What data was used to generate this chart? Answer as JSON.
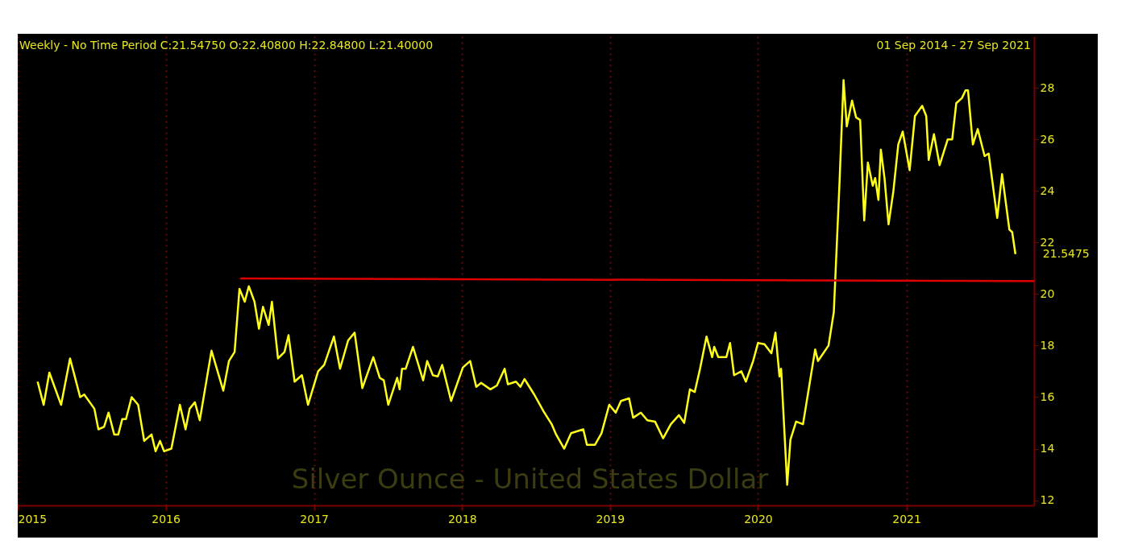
{
  "chart_data": {
    "type": "line",
    "title": "Weekly - No Time Period  C:21.54750 O:22.40800 H:22.84800 L:21.40000",
    "annotations": [
      "01 Sep 2014 - 27 Sep 2021",
      "Silver Ounce - United States Dollar",
      {
        "text": "21.5475",
        "x": "2021-09-27",
        "y": 21.5475
      }
    ],
    "x": [
      "2015-02-19",
      "2015-03-06",
      "2015-03-20",
      "2015-04-18",
      "2015-05-10",
      "2015-06-04",
      "2015-06-14",
      "2015-07-09",
      "2015-07-19",
      "2015-08-02",
      "2015-08-13",
      "2015-08-27",
      "2015-09-06",
      "2015-09-16",
      "2015-09-25",
      "2015-10-09",
      "2015-10-25",
      "2015-11-09",
      "2015-11-27",
      "2015-12-07",
      "2015-12-18",
      "2015-12-28",
      "2016-01-15",
      "2016-02-05",
      "2016-02-19",
      "2016-02-29",
      "2016-03-13",
      "2016-03-25",
      "2016-04-23",
      "2016-05-22",
      "2016-06-05",
      "2016-06-19",
      "2016-07-01",
      "2016-07-14",
      "2016-07-24",
      "2016-08-07",
      "2016-08-18",
      "2016-08-28",
      "2016-09-11",
      "2016-09-19",
      "2016-10-04",
      "2016-10-20",
      "2016-10-30",
      "2016-11-14",
      "2016-12-02",
      "2016-12-17",
      "2017-01-11",
      "2017-01-26",
      "2017-02-19",
      "2017-03-06",
      "2017-03-26",
      "2017-04-11",
      "2017-04-30",
      "2017-05-27",
      "2017-06-12",
      "2017-06-22",
      "2017-07-03",
      "2017-07-25",
      "2017-07-31",
      "2017-08-06",
      "2017-08-15",
      "2017-09-02",
      "2017-09-27",
      "2017-10-07",
      "2017-10-21",
      "2017-11-02",
      "2017-11-13",
      "2017-12-05",
      "2018-01-03",
      "2018-01-21",
      "2018-02-05",
      "2018-02-17",
      "2018-03-12",
      "2018-03-28",
      "2018-04-16",
      "2018-04-24",
      "2018-05-14",
      "2018-05-25",
      "2018-06-04",
      "2018-06-28",
      "2018-07-21",
      "2018-08-10",
      "2018-08-21",
      "2018-09-10",
      "2018-09-27",
      "2018-10-27",
      "2018-11-05",
      "2018-11-25",
      "2018-12-11",
      "2018-12-30",
      "2019-01-15",
      "2019-01-28",
      "2019-02-17",
      "2019-02-27",
      "2019-03-18",
      "2019-04-03",
      "2019-04-22",
      "2019-05-12",
      "2019-05-31",
      "2019-06-20",
      "2019-07-03",
      "2019-07-17",
      "2019-07-29",
      "2019-08-11",
      "2019-08-27",
      "2019-09-10",
      "2019-09-15",
      "2019-09-25",
      "2019-10-15",
      "2019-10-24",
      "2019-11-03",
      "2019-11-21",
      "2019-12-02",
      "2019-12-20",
      "2020-01-01",
      "2020-01-17",
      "2020-02-03",
      "2020-02-13",
      "2020-02-23",
      "2020-02-27",
      "2020-03-13",
      "2020-03-21",
      "2020-04-04",
      "2020-04-21",
      "2020-05-21",
      "2020-05-28",
      "2020-06-23",
      "2020-07-06",
      "2020-07-14",
      "2020-07-20",
      "2020-07-30",
      "2020-08-07",
      "2020-08-20",
      "2020-08-30",
      "2020-09-09",
      "2020-09-19",
      "2020-09-28",
      "2020-10-10",
      "2020-10-16",
      "2020-10-24",
      "2020-10-30",
      "2020-11-08",
      "2020-11-18",
      "2020-11-30",
      "2020-12-12",
      "2020-12-23",
      "2021-01-09",
      "2021-01-22",
      "2021-02-09",
      "2021-02-19",
      "2021-02-25",
      "2021-03-10",
      "2021-03-24",
      "2021-04-13",
      "2021-04-24",
      "2021-05-04",
      "2021-05-18",
      "2021-05-27",
      "2021-06-02",
      "2021-06-14",
      "2021-06-26",
      "2021-07-13",
      "2021-07-23",
      "2021-08-13",
      "2021-08-25",
      "2021-09-12",
      "2021-09-19",
      "2021-09-27"
    ],
    "series": [
      {
        "color": "#ffff1a",
        "values": [
          16.6,
          15.7,
          16.95,
          15.7,
          17.5,
          16.0,
          16.1,
          15.55,
          14.75,
          14.85,
          15.4,
          14.55,
          14.55,
          15.15,
          15.15,
          16.0,
          15.7,
          14.3,
          14.55,
          13.9,
          14.3,
          13.9,
          14.0,
          15.7,
          14.75,
          15.55,
          15.8,
          15.1,
          17.8,
          16.25,
          17.4,
          17.75,
          20.2,
          19.7,
          20.3,
          19.7,
          18.65,
          19.5,
          18.8,
          19.7,
          17.5,
          17.75,
          18.4,
          16.6,
          16.85,
          15.7,
          17.0,
          17.25,
          18.35,
          17.1,
          18.2,
          18.5,
          16.35,
          17.55,
          16.75,
          16.65,
          15.7,
          16.75,
          16.3,
          17.1,
          17.1,
          17.95,
          16.65,
          17.4,
          16.85,
          16.8,
          17.25,
          15.85,
          17.15,
          17.4,
          16.4,
          16.55,
          16.3,
          16.45,
          17.1,
          16.5,
          16.6,
          16.4,
          16.7,
          16.1,
          15.45,
          14.95,
          14.55,
          14.0,
          14.6,
          14.75,
          14.15,
          14.15,
          14.6,
          15.7,
          15.4,
          15.85,
          15.95,
          15.2,
          15.4,
          15.1,
          15.05,
          14.4,
          14.95,
          15.3,
          15.0,
          16.3,
          16.2,
          17.1,
          18.35,
          17.55,
          17.95,
          17.55,
          17.55,
          18.1,
          16.85,
          17.0,
          16.6,
          17.4,
          18.1,
          18.05,
          17.7,
          18.5,
          16.8,
          17.1,
          12.6,
          14.35,
          15.05,
          14.95,
          17.85,
          17.4,
          18.0,
          19.3,
          22.15,
          24.3,
          28.3,
          26.5,
          27.5,
          26.85,
          26.75,
          22.85,
          25.1,
          24.2,
          24.5,
          23.65,
          25.6,
          24.5,
          22.7,
          24.0,
          25.8,
          26.3,
          24.8,
          26.9,
          27.3,
          26.9,
          25.2,
          26.2,
          25.0,
          26.0,
          26.0,
          27.4,
          27.6,
          27.9,
          27.9,
          25.8,
          26.4,
          25.35,
          25.45,
          22.95,
          24.65,
          22.5,
          22.4,
          21.5475
        ]
      },
      {
        "type": "line",
        "color": "#e00000",
        "x": [
          "2016-07-03",
          "2021-11-12"
        ],
        "values": [
          20.6,
          20.5
        ]
      }
    ],
    "xlim": [
      "2015-01-01",
      "2021-11-12"
    ],
    "xticks": [
      "2015",
      "2016",
      "2017",
      "2018",
      "2019",
      "2020",
      "2021"
    ],
    "ylim": [
      11.8,
      30
    ],
    "yticks": [
      12,
      14,
      16,
      18,
      20,
      22,
      24,
      26,
      28
    ],
    "grid": "x"
  }
}
